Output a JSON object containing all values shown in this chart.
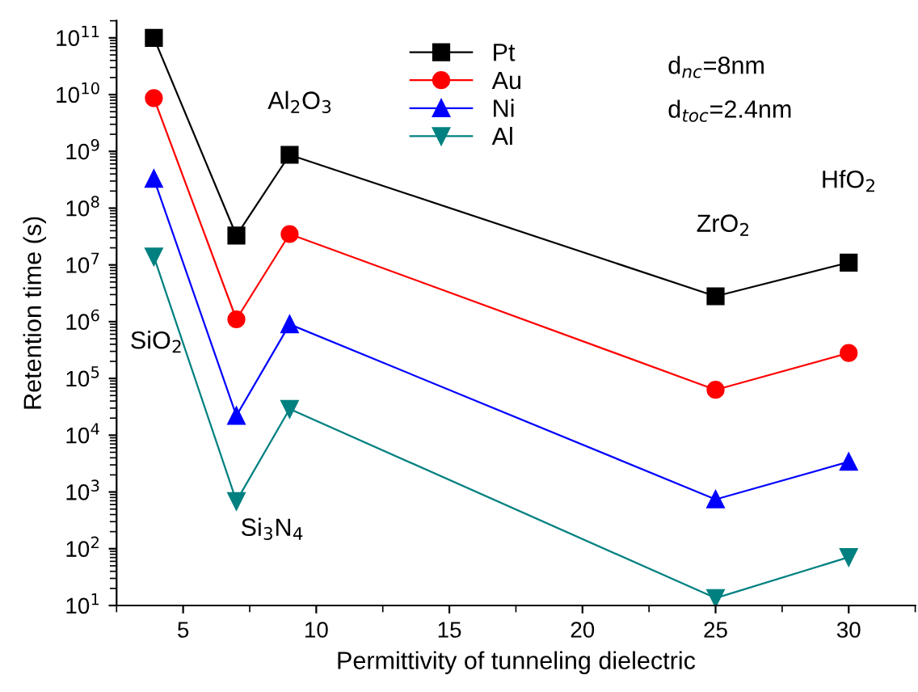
{
  "chart_data": {
    "type": "line",
    "xlabel": "Permittivity of tunneling dielectric",
    "ylabel": "Retention time (s)",
    "x": [
      3.9,
      7,
      9,
      25,
      30
    ],
    "series": [
      {
        "name": "Pt",
        "color": "#000000",
        "marker": "square",
        "values": [
          100000000000.0,
          33000000.0,
          870000000.0,
          2800000.0,
          11000000.0
        ]
      },
      {
        "name": "Au",
        "color": "#ff0000",
        "marker": "circle",
        "values": [
          8700000000.0,
          1100000.0,
          35000000.0,
          63000.0,
          280000.0
        ]
      },
      {
        "name": "Ni",
        "color": "#0000ff",
        "marker": "triangle",
        "values": [
          330000000.0,
          22000.0,
          900000.0,
          740,
          3400
        ]
      },
      {
        "name": "Al",
        "color": "#008080",
        "marker": "triangle_down",
        "values": [
          14000000.0,
          690,
          29000.0,
          13.5,
          71
        ]
      }
    ],
    "log": "y",
    "xlim": [
      2.5,
      32.5
    ],
    "xticks": [
      5,
      10,
      15,
      20,
      25,
      30
    ],
    "ylim": [
      10,
      200000000000.0
    ],
    "yticks": [
      {
        "value": 10,
        "label": "10$^{1}$"
      },
      {
        "value": 100,
        "label": "10$^{2}$"
      },
      {
        "value": 1000,
        "label": "10$^{3}$"
      },
      {
        "value": 10000,
        "label": "10$^{4}$"
      },
      {
        "value": 100000,
        "label": "10$^{5}$"
      },
      {
        "value": 1000000,
        "label": "10$^{6}$"
      },
      {
        "value": 10000000,
        "label": "10$^{7}$"
      },
      {
        "value": 100000000,
        "label": "10$^{8}$"
      },
      {
        "value": 1000000000,
        "label": "10$^{9}$"
      },
      {
        "value": 10000000000,
        "label": "10$^{10}$"
      },
      {
        "value": 100000000000,
        "label": "10$^{11}$"
      }
    ],
    "grid": false,
    "legend": "top",
    "line_style": "solid",
    "annotations": [
      "SiO$_{2}$",
      "Si$_{3}$N$_{4}$",
      "Al$_{2}$O$_{3}$",
      "ZrO$_{2}$",
      "HfO$_{2}$",
      "d$_{nc}$=8nm",
      "d$_{toc}$=2.4nm"
    ]
  }
}
